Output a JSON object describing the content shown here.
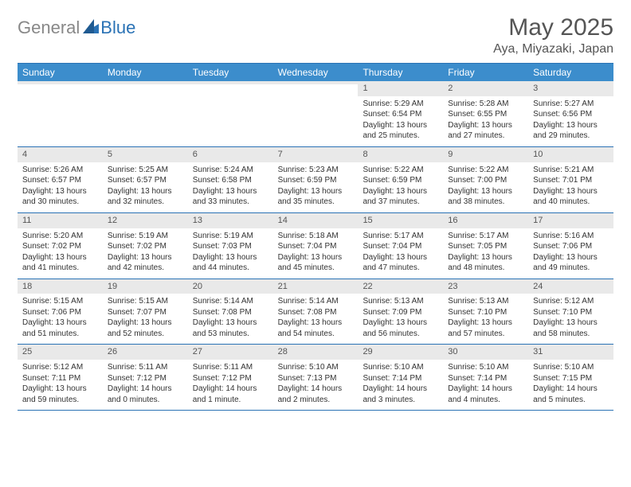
{
  "logo": {
    "part1": "General",
    "part2": "Blue"
  },
  "title": "May 2025",
  "location": "Aya, Miyazaki, Japan",
  "colors": {
    "header_bg": "#3c8dcc",
    "header_border": "#2a72b5",
    "daynum_bg": "#e9e9e9",
    "text": "#333333",
    "logo_gray": "#888888",
    "logo_blue": "#2a72b5"
  },
  "day_names": [
    "Sunday",
    "Monday",
    "Tuesday",
    "Wednesday",
    "Thursday",
    "Friday",
    "Saturday"
  ],
  "weeks": [
    [
      {
        "n": "",
        "sr": "",
        "ss": "",
        "dl": ""
      },
      {
        "n": "",
        "sr": "",
        "ss": "",
        "dl": ""
      },
      {
        "n": "",
        "sr": "",
        "ss": "",
        "dl": ""
      },
      {
        "n": "",
        "sr": "",
        "ss": "",
        "dl": ""
      },
      {
        "n": "1",
        "sr": "Sunrise: 5:29 AM",
        "ss": "Sunset: 6:54 PM",
        "dl": "Daylight: 13 hours and 25 minutes."
      },
      {
        "n": "2",
        "sr": "Sunrise: 5:28 AM",
        "ss": "Sunset: 6:55 PM",
        "dl": "Daylight: 13 hours and 27 minutes."
      },
      {
        "n": "3",
        "sr": "Sunrise: 5:27 AM",
        "ss": "Sunset: 6:56 PM",
        "dl": "Daylight: 13 hours and 29 minutes."
      }
    ],
    [
      {
        "n": "4",
        "sr": "Sunrise: 5:26 AM",
        "ss": "Sunset: 6:57 PM",
        "dl": "Daylight: 13 hours and 30 minutes."
      },
      {
        "n": "5",
        "sr": "Sunrise: 5:25 AM",
        "ss": "Sunset: 6:57 PM",
        "dl": "Daylight: 13 hours and 32 minutes."
      },
      {
        "n": "6",
        "sr": "Sunrise: 5:24 AM",
        "ss": "Sunset: 6:58 PM",
        "dl": "Daylight: 13 hours and 33 minutes."
      },
      {
        "n": "7",
        "sr": "Sunrise: 5:23 AM",
        "ss": "Sunset: 6:59 PM",
        "dl": "Daylight: 13 hours and 35 minutes."
      },
      {
        "n": "8",
        "sr": "Sunrise: 5:22 AM",
        "ss": "Sunset: 6:59 PM",
        "dl": "Daylight: 13 hours and 37 minutes."
      },
      {
        "n": "9",
        "sr": "Sunrise: 5:22 AM",
        "ss": "Sunset: 7:00 PM",
        "dl": "Daylight: 13 hours and 38 minutes."
      },
      {
        "n": "10",
        "sr": "Sunrise: 5:21 AM",
        "ss": "Sunset: 7:01 PM",
        "dl": "Daylight: 13 hours and 40 minutes."
      }
    ],
    [
      {
        "n": "11",
        "sr": "Sunrise: 5:20 AM",
        "ss": "Sunset: 7:02 PM",
        "dl": "Daylight: 13 hours and 41 minutes."
      },
      {
        "n": "12",
        "sr": "Sunrise: 5:19 AM",
        "ss": "Sunset: 7:02 PM",
        "dl": "Daylight: 13 hours and 42 minutes."
      },
      {
        "n": "13",
        "sr": "Sunrise: 5:19 AM",
        "ss": "Sunset: 7:03 PM",
        "dl": "Daylight: 13 hours and 44 minutes."
      },
      {
        "n": "14",
        "sr": "Sunrise: 5:18 AM",
        "ss": "Sunset: 7:04 PM",
        "dl": "Daylight: 13 hours and 45 minutes."
      },
      {
        "n": "15",
        "sr": "Sunrise: 5:17 AM",
        "ss": "Sunset: 7:04 PM",
        "dl": "Daylight: 13 hours and 47 minutes."
      },
      {
        "n": "16",
        "sr": "Sunrise: 5:17 AM",
        "ss": "Sunset: 7:05 PM",
        "dl": "Daylight: 13 hours and 48 minutes."
      },
      {
        "n": "17",
        "sr": "Sunrise: 5:16 AM",
        "ss": "Sunset: 7:06 PM",
        "dl": "Daylight: 13 hours and 49 minutes."
      }
    ],
    [
      {
        "n": "18",
        "sr": "Sunrise: 5:15 AM",
        "ss": "Sunset: 7:06 PM",
        "dl": "Daylight: 13 hours and 51 minutes."
      },
      {
        "n": "19",
        "sr": "Sunrise: 5:15 AM",
        "ss": "Sunset: 7:07 PM",
        "dl": "Daylight: 13 hours and 52 minutes."
      },
      {
        "n": "20",
        "sr": "Sunrise: 5:14 AM",
        "ss": "Sunset: 7:08 PM",
        "dl": "Daylight: 13 hours and 53 minutes."
      },
      {
        "n": "21",
        "sr": "Sunrise: 5:14 AM",
        "ss": "Sunset: 7:08 PM",
        "dl": "Daylight: 13 hours and 54 minutes."
      },
      {
        "n": "22",
        "sr": "Sunrise: 5:13 AM",
        "ss": "Sunset: 7:09 PM",
        "dl": "Daylight: 13 hours and 56 minutes."
      },
      {
        "n": "23",
        "sr": "Sunrise: 5:13 AM",
        "ss": "Sunset: 7:10 PM",
        "dl": "Daylight: 13 hours and 57 minutes."
      },
      {
        "n": "24",
        "sr": "Sunrise: 5:12 AM",
        "ss": "Sunset: 7:10 PM",
        "dl": "Daylight: 13 hours and 58 minutes."
      }
    ],
    [
      {
        "n": "25",
        "sr": "Sunrise: 5:12 AM",
        "ss": "Sunset: 7:11 PM",
        "dl": "Daylight: 13 hours and 59 minutes."
      },
      {
        "n": "26",
        "sr": "Sunrise: 5:11 AM",
        "ss": "Sunset: 7:12 PM",
        "dl": "Daylight: 14 hours and 0 minutes."
      },
      {
        "n": "27",
        "sr": "Sunrise: 5:11 AM",
        "ss": "Sunset: 7:12 PM",
        "dl": "Daylight: 14 hours and 1 minute."
      },
      {
        "n": "28",
        "sr": "Sunrise: 5:10 AM",
        "ss": "Sunset: 7:13 PM",
        "dl": "Daylight: 14 hours and 2 minutes."
      },
      {
        "n": "29",
        "sr": "Sunrise: 5:10 AM",
        "ss": "Sunset: 7:14 PM",
        "dl": "Daylight: 14 hours and 3 minutes."
      },
      {
        "n": "30",
        "sr": "Sunrise: 5:10 AM",
        "ss": "Sunset: 7:14 PM",
        "dl": "Daylight: 14 hours and 4 minutes."
      },
      {
        "n": "31",
        "sr": "Sunrise: 5:10 AM",
        "ss": "Sunset: 7:15 PM",
        "dl": "Daylight: 14 hours and 5 minutes."
      }
    ]
  ]
}
